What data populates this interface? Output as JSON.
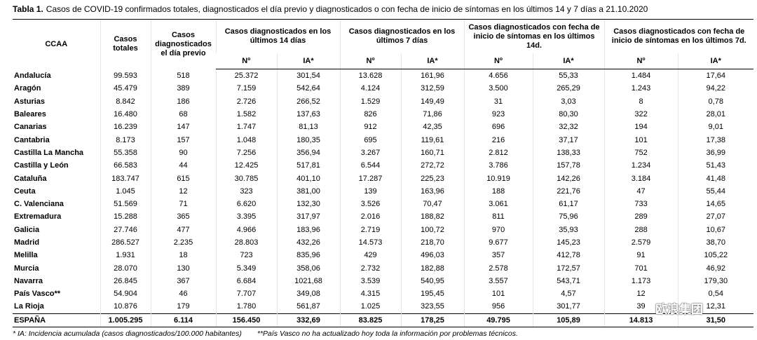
{
  "title": {
    "label": "Tabla 1.",
    "text": "Casos de COVID-19 confirmados totales, diagnosticados el día previo y diagnosticados o con fecha de inicio de síntomas en los últimos 14 y 7 días a 21.10.2020"
  },
  "table": {
    "header": {
      "ccaa": "CCAA",
      "totales": "Casos totales",
      "previo": "Casos diagnosticados el día previo",
      "groups": [
        "Casos diagnosticados en los últimos 14 días",
        "Casos diagnosticados en los últimos 7 días",
        "Casos diagnosticados con fecha de inicio de síntomas en los últimos 14d.",
        "Casos diagnosticados con fecha de inicio de síntomas en los últimos 7d."
      ],
      "sub": [
        "Nº",
        "IA*",
        "Nº",
        "IA*",
        "Nº",
        "IA*",
        "Nº",
        "IA*"
      ]
    },
    "rows": [
      [
        "Andalucía",
        "99.593",
        "518",
        "25.372",
        "301,54",
        "13.628",
        "161,96",
        "4.656",
        "55,33",
        "1.484",
        "17,64"
      ],
      [
        "Aragón",
        "45.479",
        "389",
        "7.159",
        "542,64",
        "4.124",
        "312,59",
        "3.500",
        "265,29",
        "1.243",
        "94,22"
      ],
      [
        "Asturias",
        "8.842",
        "186",
        "2.726",
        "266,52",
        "1.529",
        "149,49",
        "31",
        "3,03",
        "8",
        "0,78"
      ],
      [
        "Baleares",
        "16.480",
        "68",
        "1.582",
        "137,63",
        "826",
        "71,86",
        "923",
        "80,30",
        "322",
        "28,01"
      ],
      [
        "Canarias",
        "16.239",
        "147",
        "1.747",
        "81,13",
        "912",
        "42,35",
        "696",
        "32,32",
        "194",
        "9,01"
      ],
      [
        "Cantabria",
        "8.173",
        "157",
        "1.048",
        "180,35",
        "695",
        "119,61",
        "216",
        "37,17",
        "101",
        "17,38"
      ],
      [
        "Castilla La Mancha",
        "55.358",
        "90",
        "7.256",
        "356,94",
        "3.267",
        "160,71",
        "2.812",
        "138,33",
        "752",
        "36,99"
      ],
      [
        "Castilla y León",
        "66.583",
        "44",
        "12.425",
        "517,81",
        "6.544",
        "272,72",
        "3.786",
        "157,78",
        "1.234",
        "51,43"
      ],
      [
        "Cataluña",
        "183.747",
        "615",
        "30.785",
        "401,10",
        "17.287",
        "225,23",
        "10.919",
        "142,26",
        "3.184",
        "41,48"
      ],
      [
        "Ceuta",
        "1.045",
        "12",
        "323",
        "381,00",
        "139",
        "163,96",
        "188",
        "221,76",
        "47",
        "55,44"
      ],
      [
        "C. Valenciana",
        "51.569",
        "71",
        "6.620",
        "132,30",
        "3.526",
        "70,47",
        "3.061",
        "61,17",
        "733",
        "14,65"
      ],
      [
        "Extremadura",
        "15.288",
        "365",
        "3.395",
        "317,97",
        "2.016",
        "188,82",
        "811",
        "75,96",
        "289",
        "27,07"
      ],
      [
        "Galicia",
        "27.746",
        "477",
        "4.966",
        "183,96",
        "2.719",
        "100,72",
        "970",
        "35,93",
        "288",
        "10,67"
      ],
      [
        "Madrid",
        "286.527",
        "2.235",
        "28.803",
        "432,26",
        "14.573",
        "218,70",
        "9.677",
        "145,23",
        "2.579",
        "38,70"
      ],
      [
        "Melilla",
        "1.931",
        "18",
        "723",
        "835,96",
        "429",
        "496,03",
        "357",
        "412,78",
        "91",
        "105,22"
      ],
      [
        "Murcia",
        "28.070",
        "130",
        "5.349",
        "358,06",
        "2.732",
        "182,88",
        "2.578",
        "172,57",
        "701",
        "46,92"
      ],
      [
        "Navarra",
        "26.845",
        "367",
        "6.684",
        "1021,68",
        "3.539",
        "540,95",
        "3.557",
        "543,71",
        "1.173",
        "179,30"
      ],
      [
        "País Vasco**",
        "54.904",
        "46",
        "7.707",
        "349,08",
        "4.315",
        "195,45",
        "101",
        "4,57",
        "12",
        "0,54"
      ],
      [
        "La Rioja",
        "10.876",
        "179",
        "1.780",
        "561,87",
        "1.025",
        "323,55",
        "956",
        "301,77",
        "39",
        "12,31"
      ]
    ],
    "total": [
      "ESPAÑA",
      "1.005.295",
      "6.114",
      "156.450",
      "332,69",
      "83.825",
      "178,25",
      "49.795",
      "105,89",
      "14.813",
      "31,50"
    ]
  },
  "footnotes": [
    "* IA: Incidencia acumulada (casos diagnosticados/100.000 habitantes)",
    "**País Vasco no ha actualizado hoy toda la información por problemas técnicos."
  ],
  "watermark": "欧浪集团"
}
